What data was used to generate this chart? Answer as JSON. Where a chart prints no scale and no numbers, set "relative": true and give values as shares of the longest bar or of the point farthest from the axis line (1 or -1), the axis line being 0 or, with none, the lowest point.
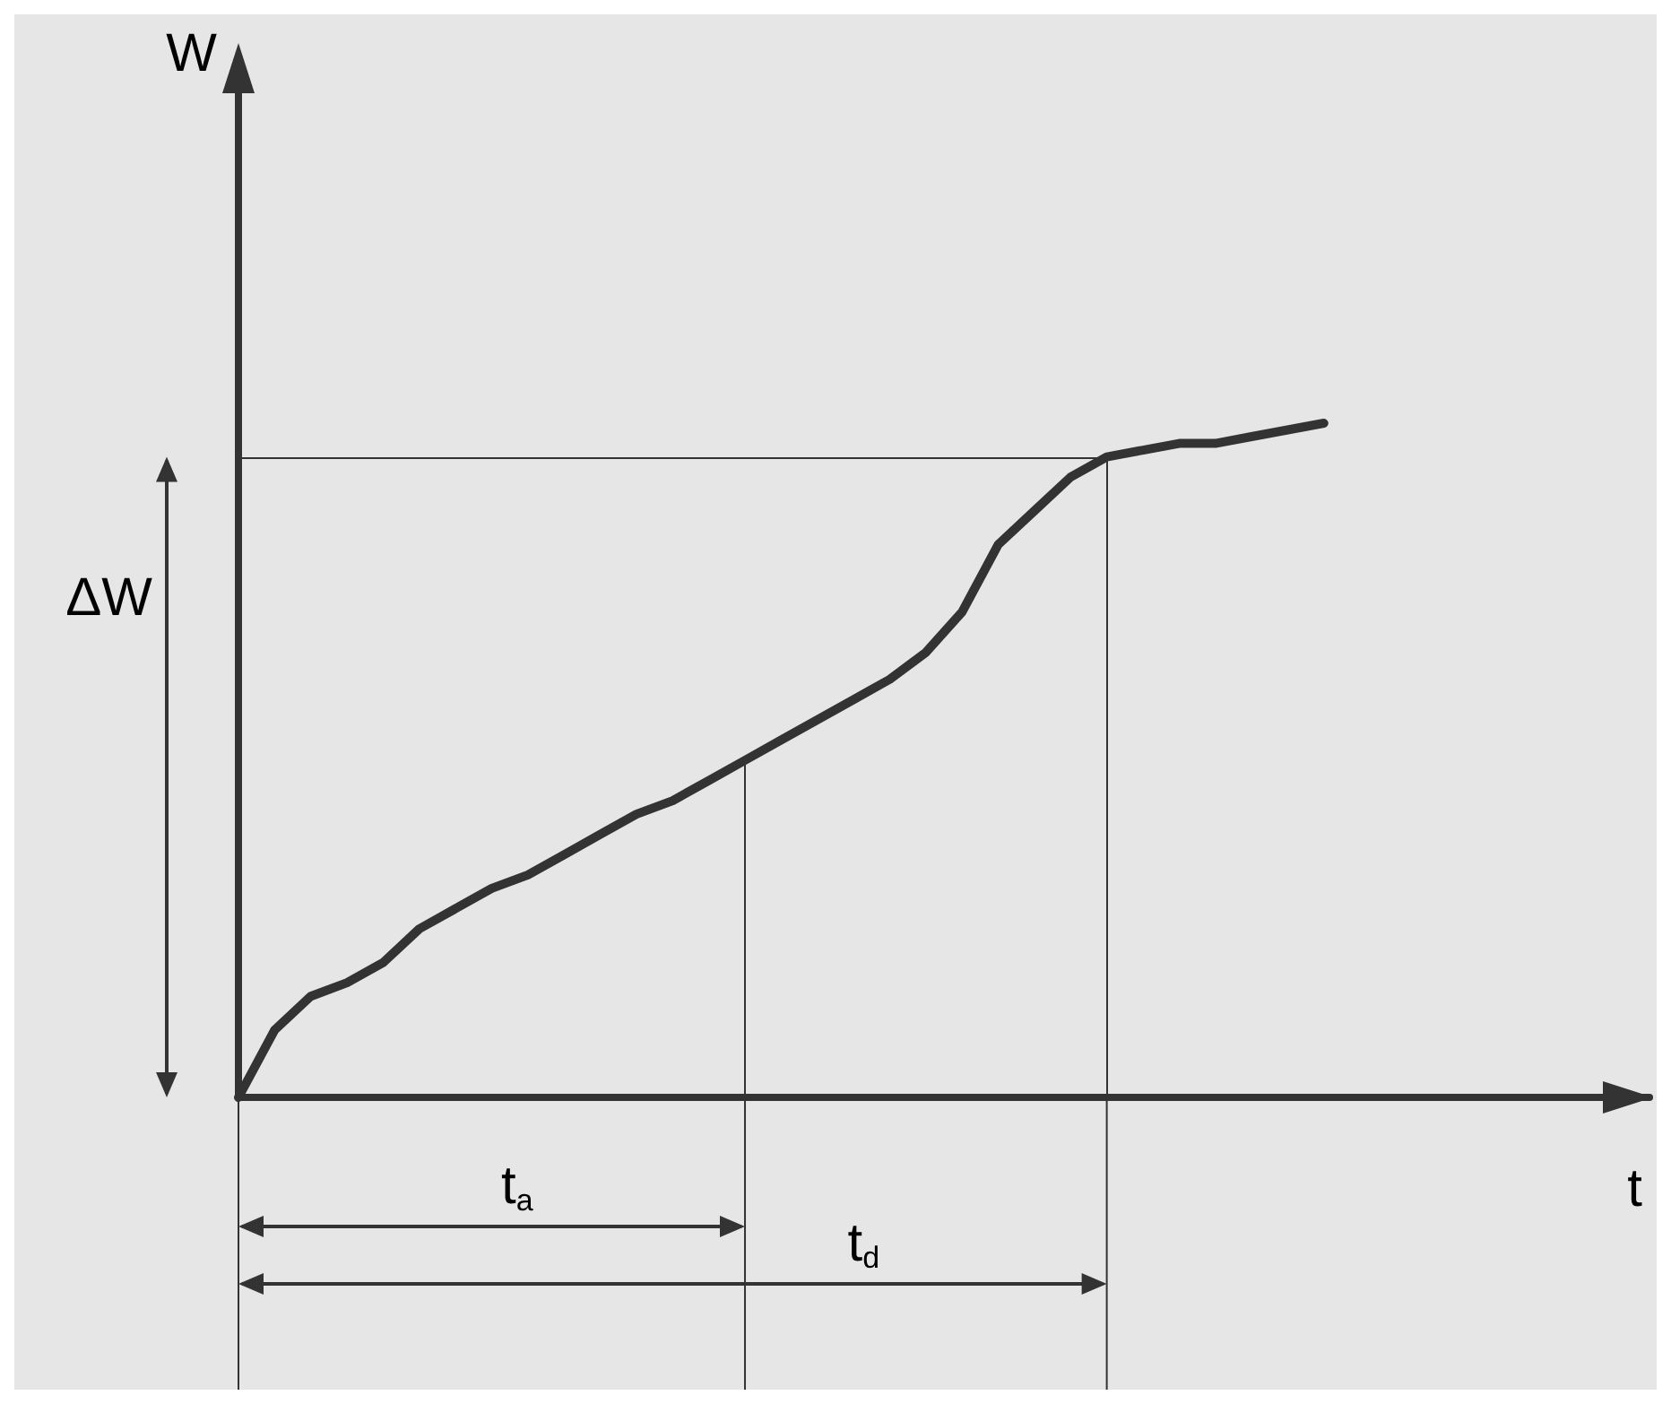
{
  "chart_data": {
    "type": "line",
    "relative": true,
    "annotations": [
      "W",
      "t",
      "t$_{a}$",
      "t$_{d}$"
    ],
    "categories": [
      null,
      null,
      null,
      null,
      null,
      null,
      null,
      null,
      null,
      null,
      null,
      null,
      null,
      null,
      null,
      null,
      null,
      null,
      null,
      null,
      null,
      null,
      null,
      null,
      null,
      null,
      null,
      null,
      null,
      null,
      null
    ],
    "series": [
      {
        "color": "#333333",
        "values": [
          0,
          0.1,
          0.15,
          0.17,
          0.2,
          0.25,
          0.28,
          0.31,
          0.33,
          0.36,
          0.39,
          0.42,
          0.44,
          0.47,
          0.5,
          0.53,
          0.56,
          0.59,
          0.62,
          0.66,
          0.72,
          0.82,
          0.87,
          0.92,
          0.95,
          0.96,
          0.97,
          0.97,
          0.98,
          0.99,
          1
        ]
      }
    ],
    "ref_lines": [
      {
        "axis": "y",
        "value": 0.95,
        "label": "ΔW",
        "color": "#333333"
      }
    ],
    "marker": "none",
    "grid": false
  }
}
